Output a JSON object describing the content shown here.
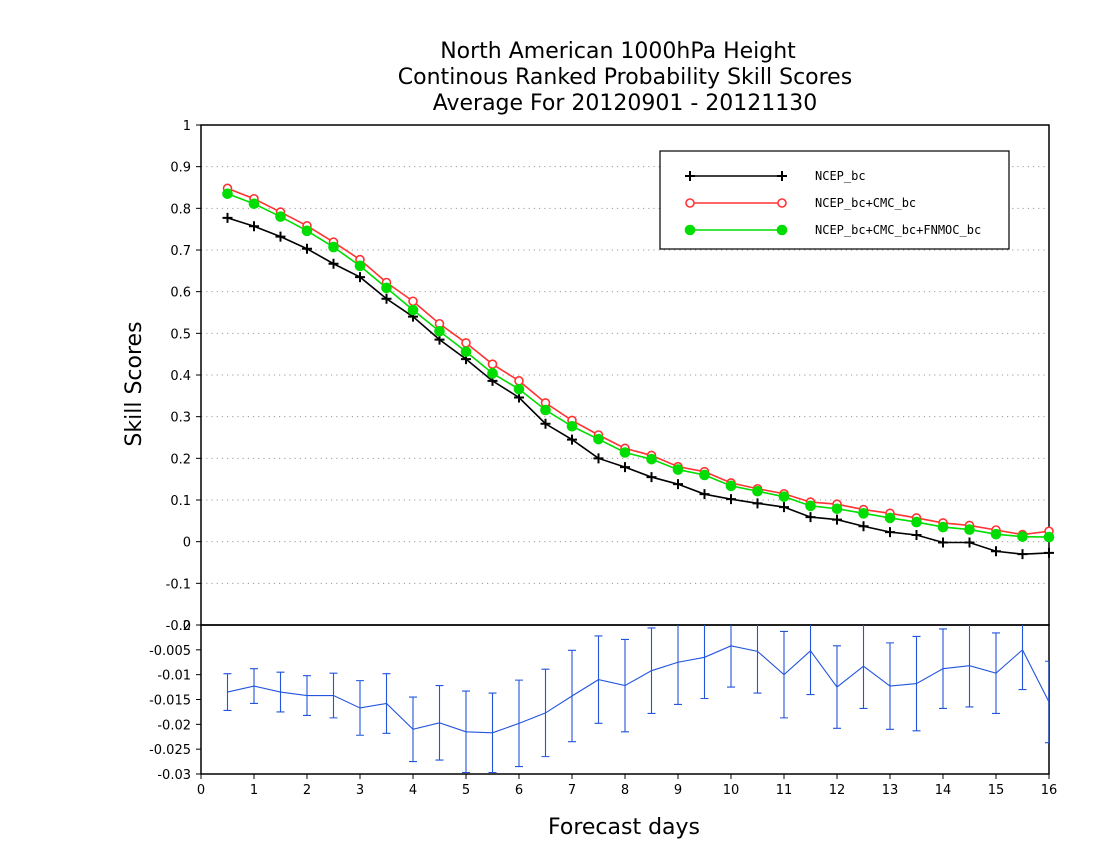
{
  "chart_data": [
    {
      "type": "line",
      "title": [
        "North American 1000hPa Height",
        "Continous Ranked Probability Skill Scores",
        "Average For 20120901 - 20121130"
      ],
      "ylabel": "Skill Scores",
      "ylim": [
        -0.2,
        1
      ],
      "yticks": [
        "1",
        "0.9",
        "0.8",
        "0.7",
        "0.6",
        "0.5",
        "0.4",
        "0.3",
        "0.2",
        "0.1",
        "0",
        "-0.1",
        "-0.2"
      ],
      "grid": true,
      "legend_position": "top-right",
      "x": [
        0.5,
        1,
        1.5,
        2,
        2.5,
        3,
        3.5,
        4,
        4.5,
        5,
        5.5,
        6,
        6.5,
        7,
        7.5,
        8,
        8.5,
        9,
        9.5,
        10,
        10.5,
        11,
        11.5,
        12,
        12.5,
        13,
        13.5,
        14,
        14.5,
        15,
        15.5,
        16
      ],
      "series": [
        {
          "name": "NCEP_bc",
          "color": "#000000",
          "marker": "plus",
          "values": [
            0.777,
            0.757,
            0.732,
            0.703,
            0.667,
            0.635,
            0.583,
            0.54,
            0.485,
            0.438,
            0.386,
            0.346,
            0.283,
            0.245,
            0.2,
            0.179,
            0.155,
            0.138,
            0.114,
            0.102,
            0.092,
            0.083,
            0.059,
            0.053,
            0.037,
            0.023,
            0.016,
            -0.002,
            -0.002,
            -0.023,
            -0.03,
            -0.027
          ]
        },
        {
          "name": "NCEP_bc+CMC_bc",
          "color": "#ff3333",
          "marker": "open-circle",
          "values": [
            0.848,
            0.823,
            0.791,
            0.758,
            0.719,
            0.677,
            0.622,
            0.577,
            0.523,
            0.477,
            0.426,
            0.386,
            0.333,
            0.291,
            0.256,
            0.224,
            0.207,
            0.18,
            0.168,
            0.141,
            0.127,
            0.115,
            0.095,
            0.09,
            0.077,
            0.068,
            0.057,
            0.045,
            0.039,
            0.028,
            0.017,
            0.025
          ]
        },
        {
          "name": "NCEP_bc+CMC_bc+FNMOC_bc",
          "color": "#00dd00",
          "marker": "filled-circle",
          "values": [
            0.835,
            0.811,
            0.78,
            0.746,
            0.707,
            0.662,
            0.609,
            0.556,
            0.505,
            0.456,
            0.404,
            0.366,
            0.316,
            0.277,
            0.246,
            0.214,
            0.198,
            0.173,
            0.16,
            0.134,
            0.121,
            0.108,
            0.086,
            0.079,
            0.068,
            0.057,
            0.047,
            0.035,
            0.029,
            0.018,
            0.012,
            0.011
          ]
        }
      ]
    },
    {
      "type": "line",
      "xlabel": "Forecast days",
      "xlim": [
        0,
        16
      ],
      "xticks": [
        "0",
        "1",
        "2",
        "3",
        "4",
        "5",
        "6",
        "7",
        "8",
        "9",
        "10",
        "11",
        "12",
        "13",
        "14",
        "15",
        "16"
      ],
      "ylim": [
        -0.03,
        0
      ],
      "yticks": [
        "0",
        "-0.005",
        "-0.01",
        "-0.015",
        "-0.02",
        "-0.025",
        "-0.03"
      ],
      "reference_line": 0,
      "x": [
        0.5,
        1,
        1.5,
        2,
        2.5,
        3,
        3.5,
        4,
        4.5,
        5,
        5.5,
        6,
        6.5,
        7,
        7.5,
        8,
        8.5,
        9,
        9.5,
        10,
        10.5,
        11,
        11.5,
        12,
        12.5,
        13,
        13.5,
        14,
        14.5,
        15,
        15.5,
        16
      ],
      "series": [
        {
          "color": "#2255dd",
          "values": [
            -0.0135,
            -0.0123,
            -0.0135,
            -0.0142,
            -0.0142,
            -0.0167,
            -0.0158,
            -0.021,
            -0.0197,
            -0.0215,
            -0.0217,
            -0.0198,
            -0.0177,
            -0.0143,
            -0.011,
            -0.0122,
            -0.0092,
            -0.0075,
            -0.0065,
            -0.0042,
            -0.0053,
            -0.01,
            -0.0052,
            -0.0125,
            -0.0083,
            -0.0123,
            -0.0118,
            -0.0088,
            -0.0082,
            -0.0097,
            -0.005,
            -0.0155
          ],
          "error_low": [
            -0.0172,
            -0.0158,
            -0.0175,
            -0.0182,
            -0.0187,
            -0.0222,
            -0.0218,
            -0.0275,
            -0.0272,
            -0.0297,
            -0.0297,
            -0.0285,
            -0.0265,
            -0.0235,
            -0.0198,
            -0.0215,
            -0.0178,
            -0.016,
            -0.0148,
            -0.0125,
            -0.0137,
            -0.0187,
            -0.014,
            -0.0208,
            -0.0168,
            -0.021,
            -0.0213,
            -0.0168,
            -0.0165,
            -0.0178,
            -0.013,
            -0.0237
          ],
          "error_high": [
            -0.0098,
            -0.0088,
            -0.0095,
            -0.0102,
            -0.0097,
            -0.0112,
            -0.0098,
            -0.0145,
            -0.0122,
            -0.0133,
            -0.0137,
            -0.0111,
            -0.0089,
            -0.0051,
            -0.0022,
            -0.0029,
            -0.0006,
            0.001,
            0.0018,
            0.0041,
            0.0037,
            -0.0013,
            0.0036,
            -0.0042,
            0.0002,
            -0.0036,
            -0.0023,
            -0.0008,
            0.0001,
            -0.0016,
            0.003,
            -0.0073
          ]
        }
      ]
    }
  ]
}
